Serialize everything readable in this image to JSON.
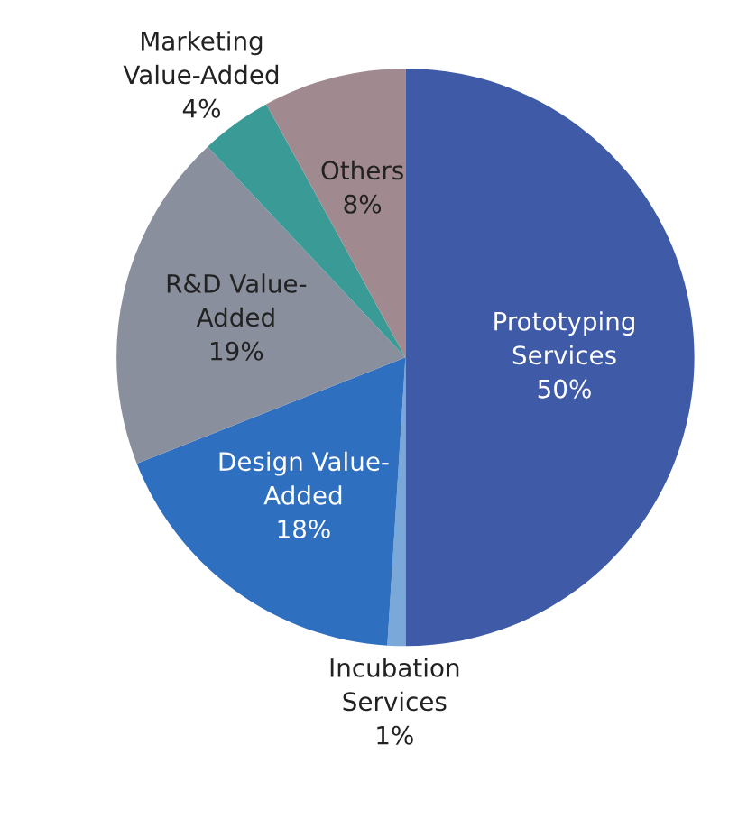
{
  "chart_data": {
    "type": "pie",
    "categories": [
      "Prototyping\nServices",
      "Incubation\nServices",
      "Design Value-\nAdded",
      "R&D Value-\nAdded",
      "Marketing\nValue-Added",
      "Others"
    ],
    "values": [
      50,
      1,
      18,
      19,
      4,
      8
    ],
    "value_labels": [
      "50%",
      "1%",
      "18%",
      "19%",
      "4%",
      "8%"
    ],
    "colors": [
      "#3f5ba8",
      "#7aa8d8",
      "#2f6fc0",
      "#8a8f9e",
      "#3a9a96",
      "#a08a90"
    ]
  }
}
